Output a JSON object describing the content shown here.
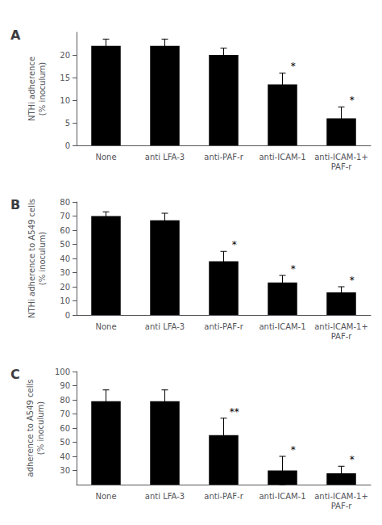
{
  "chart_data": [
    {
      "type": "bar",
      "title": "A",
      "ylabel": "NTHi adherence\n(% inoculum)",
      "categories": [
        "None",
        "anti LFA-3",
        "anti-PAF-r",
        "anti-ICAM-1",
        "anti-ICAM-1+\nPAF-r"
      ],
      "values": [
        22,
        22,
        20,
        13.5,
        6
      ],
      "errors": [
        1.5,
        1.5,
        1.5,
        2.5,
        2.5
      ],
      "annotations": [
        {
          "category": "anti-ICAM-1",
          "text": "*"
        },
        {
          "category": "anti-ICAM-1+\nPAF-r",
          "text": "*"
        }
      ],
      "color": "#000000",
      "ylim": [
        0,
        25
      ],
      "yticks": [
        0,
        5,
        10,
        15,
        20
      ],
      "grid": false
    },
    {
      "type": "bar",
      "title": "B",
      "ylabel": "NTHi adherence to A549 cells\n(% inoculum)",
      "categories": [
        "None",
        "anti LFA-3",
        "anti-PAF-r",
        "anti-ICAM-1",
        "anti-ICAM-1+\nPAF-r"
      ],
      "values": [
        70,
        67,
        38,
        23,
        16
      ],
      "errors": [
        3,
        5,
        7,
        5,
        4
      ],
      "annotations": [
        {
          "category": "anti-PAF-r",
          "text": "*"
        },
        {
          "category": "anti-ICAM-1",
          "text": "*"
        },
        {
          "category": "anti-ICAM-1+\nPAF-r",
          "text": "*"
        }
      ],
      "color": "#000000",
      "ylim": [
        0,
        80
      ],
      "yticks": [
        0,
        10,
        20,
        30,
        40,
        50,
        60,
        70,
        80
      ],
      "grid": false
    },
    {
      "type": "bar",
      "title": "C",
      "ylabel": "adherence to A549 cells\n(% inoculum)",
      "categories": [
        "None",
        "anti LFA-3",
        "anti-PAF-r",
        "anti-ICAM-1",
        "anti-ICAM-1+\nPAF-r"
      ],
      "values": [
        79,
        79,
        55,
        30,
        28
      ],
      "errors": [
        8,
        8,
        12,
        10,
        5
      ],
      "annotations": [
        {
          "category": "anti-PAF-r",
          "text": "**"
        },
        {
          "category": "anti-ICAM-1",
          "text": "*"
        },
        {
          "category": "anti-ICAM-1+\nPAF-r",
          "text": "*"
        }
      ],
      "color": "#000000",
      "ylim": [
        20,
        100
      ],
      "yticks": [
        30,
        40,
        50,
        60,
        70,
        80,
        90,
        100
      ],
      "grid": false
    }
  ]
}
